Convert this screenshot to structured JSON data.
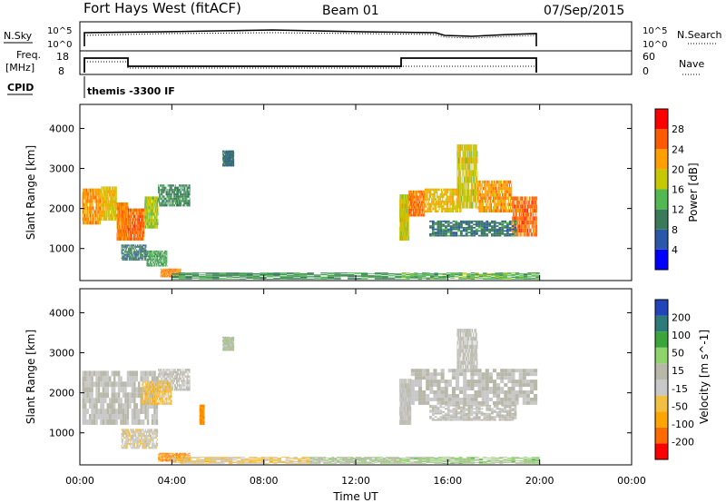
{
  "header": {
    "station": "Fort Hays West (fitACF)",
    "beam": "Beam 01",
    "date": "07/Sep/2015"
  },
  "top_panels": {
    "nsky_label": "N.Sky",
    "nsky_ticks": [
      "10^5",
      "10^0"
    ],
    "nsearch_label": "N.Search",
    "nsearch_ticks": [
      "10^5",
      "10^0"
    ],
    "freq_label_1": "Freq.",
    "freq_label_2": "[MHz]",
    "freq_ticks": [
      "18",
      "8"
    ],
    "nave_label": "Nave",
    "nave_ticks": [
      "60",
      "0"
    ],
    "cpid_label": "CPID",
    "cpid_value": "themis -3300 IF"
  },
  "time_axis": {
    "label": "Time UT",
    "ticks": [
      "00:00",
      "04:00",
      "08:00",
      "12:00",
      "16:00",
      "20:00",
      "00:00"
    ]
  },
  "colors": {
    "power": [
      "#0000ff",
      "#2a57a8",
      "#3a7a5a",
      "#52b852",
      "#c8c800",
      "#ff9f00",
      "#ff5a00",
      "#ff0000"
    ],
    "velocity": [
      "#ff0000",
      "#ff6a00",
      "#ffa500",
      "#f2c040",
      "#c8c8c8",
      "#b8b8a8",
      "#8fd46a",
      "#3aa53a",
      "#2c7a7a",
      "#2244bb"
    ]
  },
  "chart_data": [
    {
      "type": "heatmap",
      "name": "power",
      "ylabel": "Slant Range [km]",
      "ylim": [
        200,
        4600
      ],
      "yticks": [
        1000,
        2000,
        3000,
        4000
      ],
      "xlim": [
        0,
        24
      ],
      "colorbar": {
        "label": "Power [dB]",
        "ticks": [
          4,
          8,
          12,
          16,
          20,
          24,
          28
        ],
        "range": [
          0,
          30
        ]
      },
      "regions": [
        {
          "t0": 0.1,
          "t1": 0.9,
          "r0": 1600,
          "r1": 2500,
          "v": 21
        },
        {
          "t0": 0.9,
          "t1": 1.6,
          "r0": 1700,
          "r1": 2550,
          "v": 18
        },
        {
          "t0": 1.6,
          "t1": 2.1,
          "r0": 1200,
          "r1": 2150,
          "v": 22
        },
        {
          "t0": 2.1,
          "t1": 2.8,
          "r0": 1200,
          "r1": 2000,
          "v": 24
        },
        {
          "t0": 2.8,
          "t1": 3.4,
          "r0": 1500,
          "r1": 2300,
          "v": 16
        },
        {
          "t0": 3.4,
          "t1": 4.8,
          "r0": 2050,
          "r1": 2600,
          "v": 10
        },
        {
          "t0": 1.8,
          "t1": 2.9,
          "r0": 700,
          "r1": 1100,
          "v": 9
        },
        {
          "t0": 2.9,
          "t1": 3.8,
          "r0": 550,
          "r1": 950,
          "v": 12
        },
        {
          "t0": 3.5,
          "t1": 4.4,
          "r0": 280,
          "r1": 500,
          "v": 22
        },
        {
          "t0": 6.2,
          "t1": 6.7,
          "r0": 3050,
          "r1": 3450,
          "v": 8
        },
        {
          "t0": 4.0,
          "t1": 14.0,
          "r0": 230,
          "r1": 400,
          "v": 11
        },
        {
          "t0": 13.9,
          "t1": 14.3,
          "r0": 1200,
          "r1": 2350,
          "v": 17
        },
        {
          "t0": 14.3,
          "t1": 15.0,
          "r0": 1800,
          "r1": 2450,
          "v": 23
        },
        {
          "t0": 15.0,
          "t1": 16.6,
          "r0": 1900,
          "r1": 2500,
          "v": 19
        },
        {
          "t0": 16.4,
          "t1": 17.3,
          "r0": 2000,
          "r1": 3600,
          "v": 17
        },
        {
          "t0": 17.3,
          "t1": 18.8,
          "r0": 1900,
          "r1": 2700,
          "v": 21
        },
        {
          "t0": 18.8,
          "t1": 19.9,
          "r0": 1300,
          "r1": 2300,
          "v": 24
        },
        {
          "t0": 15.2,
          "t1": 19.0,
          "r0": 1300,
          "r1": 1700,
          "v": 9
        },
        {
          "t0": 14.0,
          "t1": 20.0,
          "r0": 230,
          "r1": 400,
          "v": 13
        }
      ]
    },
    {
      "type": "heatmap",
      "name": "velocity",
      "ylabel": "Slant Range [km]",
      "ylim": [
        200,
        4600
      ],
      "yticks": [
        1000,
        2000,
        3000,
        4000
      ],
      "xlim": [
        0,
        24
      ],
      "colorbar": {
        "label": "Velocity [m s^-1]",
        "ticks": [
          -200,
          -100,
          -50,
          -15,
          15,
          50,
          100,
          200
        ],
        "range": [
          -250,
          250
        ]
      },
      "regions": [
        {
          "t0": 0.1,
          "t1": 3.4,
          "r0": 1200,
          "r1": 2550,
          "v": 0
        },
        {
          "t0": 3.4,
          "t1": 4.8,
          "r0": 2050,
          "r1": 2600,
          "v": 5
        },
        {
          "t0": 2.7,
          "t1": 4.0,
          "r0": 1700,
          "r1": 2300,
          "v": -75
        },
        {
          "t0": 1.8,
          "t1": 3.4,
          "r0": 600,
          "r1": 1100,
          "v": -30
        },
        {
          "t0": 3.4,
          "t1": 4.8,
          "r0": 280,
          "r1": 500,
          "v": -150
        },
        {
          "t0": 5.2,
          "t1": 5.4,
          "r0": 1200,
          "r1": 1700,
          "v": -140
        },
        {
          "t0": 6.2,
          "t1": 6.7,
          "r0": 3050,
          "r1": 3400,
          "v": 30
        },
        {
          "t0": 4.0,
          "t1": 10.0,
          "r0": 230,
          "r1": 400,
          "v": -60
        },
        {
          "t0": 10.0,
          "t1": 14.0,
          "r0": 230,
          "r1": 400,
          "v": 40
        },
        {
          "t0": 13.9,
          "t1": 14.4,
          "r0": 1200,
          "r1": 2350,
          "v": 0
        },
        {
          "t0": 14.4,
          "t1": 19.9,
          "r0": 1700,
          "r1": 2600,
          "v": 0
        },
        {
          "t0": 16.4,
          "t1": 17.3,
          "r0": 2600,
          "r1": 3600,
          "v": 5
        },
        {
          "t0": 15.2,
          "t1": 19.0,
          "r0": 1300,
          "r1": 1700,
          "v": 0
        },
        {
          "t0": 14.0,
          "t1": 20.0,
          "r0": 230,
          "r1": 400,
          "v": 60
        }
      ]
    }
  ]
}
